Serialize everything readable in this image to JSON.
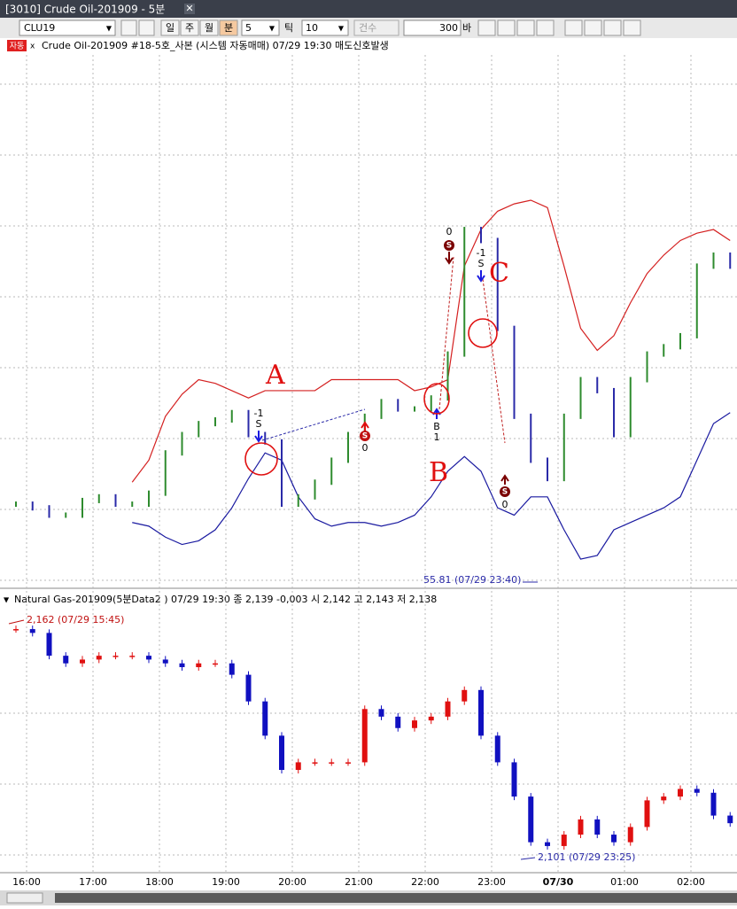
{
  "window": {
    "title": "[3010] Crude Oil-201909 - 5분"
  },
  "toolbar": {
    "symbol": "CLU19",
    "periods": [
      "일",
      "주",
      "월",
      "분"
    ],
    "interval": "5",
    "tick_label": "틱",
    "tick": "10",
    "count_label": "건수",
    "count": "300",
    "unit": "바"
  },
  "chart_data": [
    {
      "type": "ohlc",
      "badge": "자동",
      "title": "Crude Oil-201909 #18-5호_사본 (시스템 자동매매) 07/29 19:30 매도신호발생",
      "values": [
        56.02,
        56.01,
        55.99,
        55.99,
        56.03,
        56.04,
        56.02,
        56.02,
        56.05,
        56.16,
        56.21,
        56.24,
        56.25,
        56.27,
        56.21,
        56.19,
        56.02,
        56.04,
        56.08,
        56.14,
        56.21,
        56.26,
        56.3,
        56.28,
        56.28,
        56.31,
        56.43,
        56.77,
        56.74,
        56.5,
        56.26,
        56.14,
        56.09,
        56.26,
        56.36,
        56.33,
        56.21,
        56.36,
        56.43,
        56.45,
        56.48,
        56.67,
        56.7,
        56.67
      ],
      "upper_band": [
        null,
        null,
        null,
        null,
        null,
        null,
        null,
        56.08,
        56.14,
        56.26,
        56.32,
        56.36,
        56.35,
        56.33,
        56.31,
        56.33,
        56.33,
        56.33,
        56.33,
        56.36,
        56.36,
        56.36,
        56.36,
        56.36,
        56.33,
        56.34,
        56.36,
        56.67,
        56.77,
        56.82,
        56.84,
        56.85,
        56.83,
        56.67,
        56.5,
        56.44,
        56.48,
        56.57,
        56.65,
        56.7,
        56.74,
        56.76,
        56.77,
        56.74
      ],
      "lower_band": [
        null,
        null,
        null,
        null,
        null,
        null,
        null,
        55.97,
        55.96,
        55.93,
        55.91,
        55.92,
        55.95,
        56.01,
        56.09,
        56.16,
        56.14,
        56.04,
        55.98,
        55.96,
        55.97,
        55.97,
        55.96,
        55.97,
        55.99,
        56.04,
        56.11,
        56.15,
        56.11,
        56.01,
        55.99,
        56.04,
        56.04,
        55.95,
        55.87,
        55.88,
        55.95,
        55.97,
        55.99,
        56.01,
        56.04,
        56.14,
        56.24,
        56.27
      ],
      "ylim": [
        55.8,
        57.3
      ],
      "up_color": "#2e8b2e",
      "down_color": "#2a2aa8",
      "upper_color": "#d42020",
      "lower_color": "#1a1aa0",
      "low_label": "55.81 (07/29 23:40)",
      "signals": [
        {
          "qty": "-1",
          "mark": "S"
        },
        {
          "qty": "0",
          "mark": "S"
        },
        {
          "qty": "0",
          "mark": "S"
        },
        {
          "qty": "-1",
          "mark": "S"
        },
        {
          "qty": "1",
          "mark": "B"
        },
        {
          "qty": "0",
          "mark": "S"
        }
      ],
      "notes": [
        "A",
        "B",
        "C"
      ]
    },
    {
      "type": "candlestick",
      "title": "Natural Gas-201909(5분Data2 ) 07/29 19:30   종 2,139 -0,003   시 2,142 고 2,143 저 2,138",
      "values": [
        2.161,
        2.16,
        2.154,
        2.152,
        2.153,
        2.154,
        2.154,
        2.154,
        2.153,
        2.152,
        2.151,
        2.152,
        2.152,
        2.149,
        2.142,
        2.133,
        2.124,
        2.126,
        2.126,
        2.126,
        2.126,
        2.14,
        2.138,
        2.135,
        2.137,
        2.138,
        2.142,
        2.145,
        2.133,
        2.126,
        2.117,
        2.105,
        2.104,
        2.107,
        2.111,
        2.107,
        2.105,
        2.109,
        2.116,
        2.117,
        2.119,
        2.118,
        2.112,
        2.11
      ],
      "ylim": [
        2.097,
        2.168
      ],
      "up_color": "#e01010",
      "down_color": "#1010c0",
      "high_label": "2,162 (07/29 15:45)",
      "low_label": "2,101 (07/29 23:25)"
    }
  ],
  "time_axis": [
    "16:00",
    "17:00",
    "18:00",
    "19:00",
    "20:00",
    "21:00",
    "22:00",
    "23:00",
    "07/30",
    "01:00",
    "02:00"
  ]
}
